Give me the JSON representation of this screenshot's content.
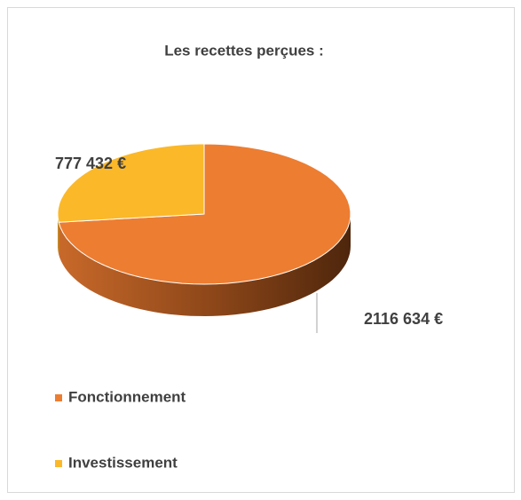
{
  "chart_data": {
    "type": "pie",
    "title": "Les recettes perçues :",
    "categories": [
      "Fonctionnement",
      "Investissement"
    ],
    "values": [
      2116634,
      777432
    ],
    "value_labels": [
      "2116 634 €",
      "777 432 €"
    ],
    "colors": [
      "#ED7D31",
      "#FBB829"
    ],
    "legend": "bottom"
  }
}
